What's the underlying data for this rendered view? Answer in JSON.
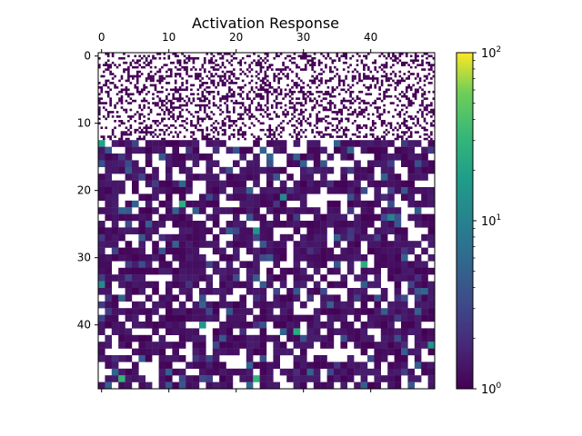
{
  "chart_data": {
    "type": "heatmap",
    "title": "Activation Response",
    "xlabel": "",
    "ylabel": "",
    "rows": 50,
    "cols": 50,
    "x_ticks": [
      0,
      10,
      20,
      30,
      40
    ],
    "y_ticks": [
      0,
      10,
      20,
      30,
      40
    ],
    "x_axis_position": "top",
    "colormap": "viridis",
    "color_scale": "log",
    "color_range": [
      1,
      100
    ],
    "colorbar": {
      "major_tick_labels": [
        {
          "base": "10",
          "exp": "0",
          "value": 1
        },
        {
          "base": "10",
          "exp": "1",
          "value": 10
        },
        {
          "base": "10",
          "exp": "2",
          "value": 100
        }
      ]
    },
    "masked_color": "#ffffff",
    "value_distribution_note": "Rows 0-12 sparse fine speckle; rows 13-49 blobby structure with mostly low (~1) values and scattered peaks up to ~30",
    "notable_peaks": [
      {
        "row": 13,
        "col": 0,
        "value": 20
      },
      {
        "row": 22,
        "col": 12,
        "value": 25
      },
      {
        "row": 26,
        "col": 23,
        "value": 15
      },
      {
        "row": 31,
        "col": 39,
        "value": 25
      },
      {
        "row": 40,
        "col": 15,
        "value": 15
      },
      {
        "row": 41,
        "col": 29,
        "value": 25
      },
      {
        "row": 43,
        "col": 49,
        "value": 15
      },
      {
        "row": 48,
        "col": 3,
        "value": 30
      },
      {
        "row": 48,
        "col": 23,
        "value": 30
      },
      {
        "row": 21,
        "col": 27,
        "value": 12
      },
      {
        "row": 34,
        "col": 0,
        "value": 12
      },
      {
        "row": 24,
        "col": 43,
        "value": 10
      }
    ]
  }
}
